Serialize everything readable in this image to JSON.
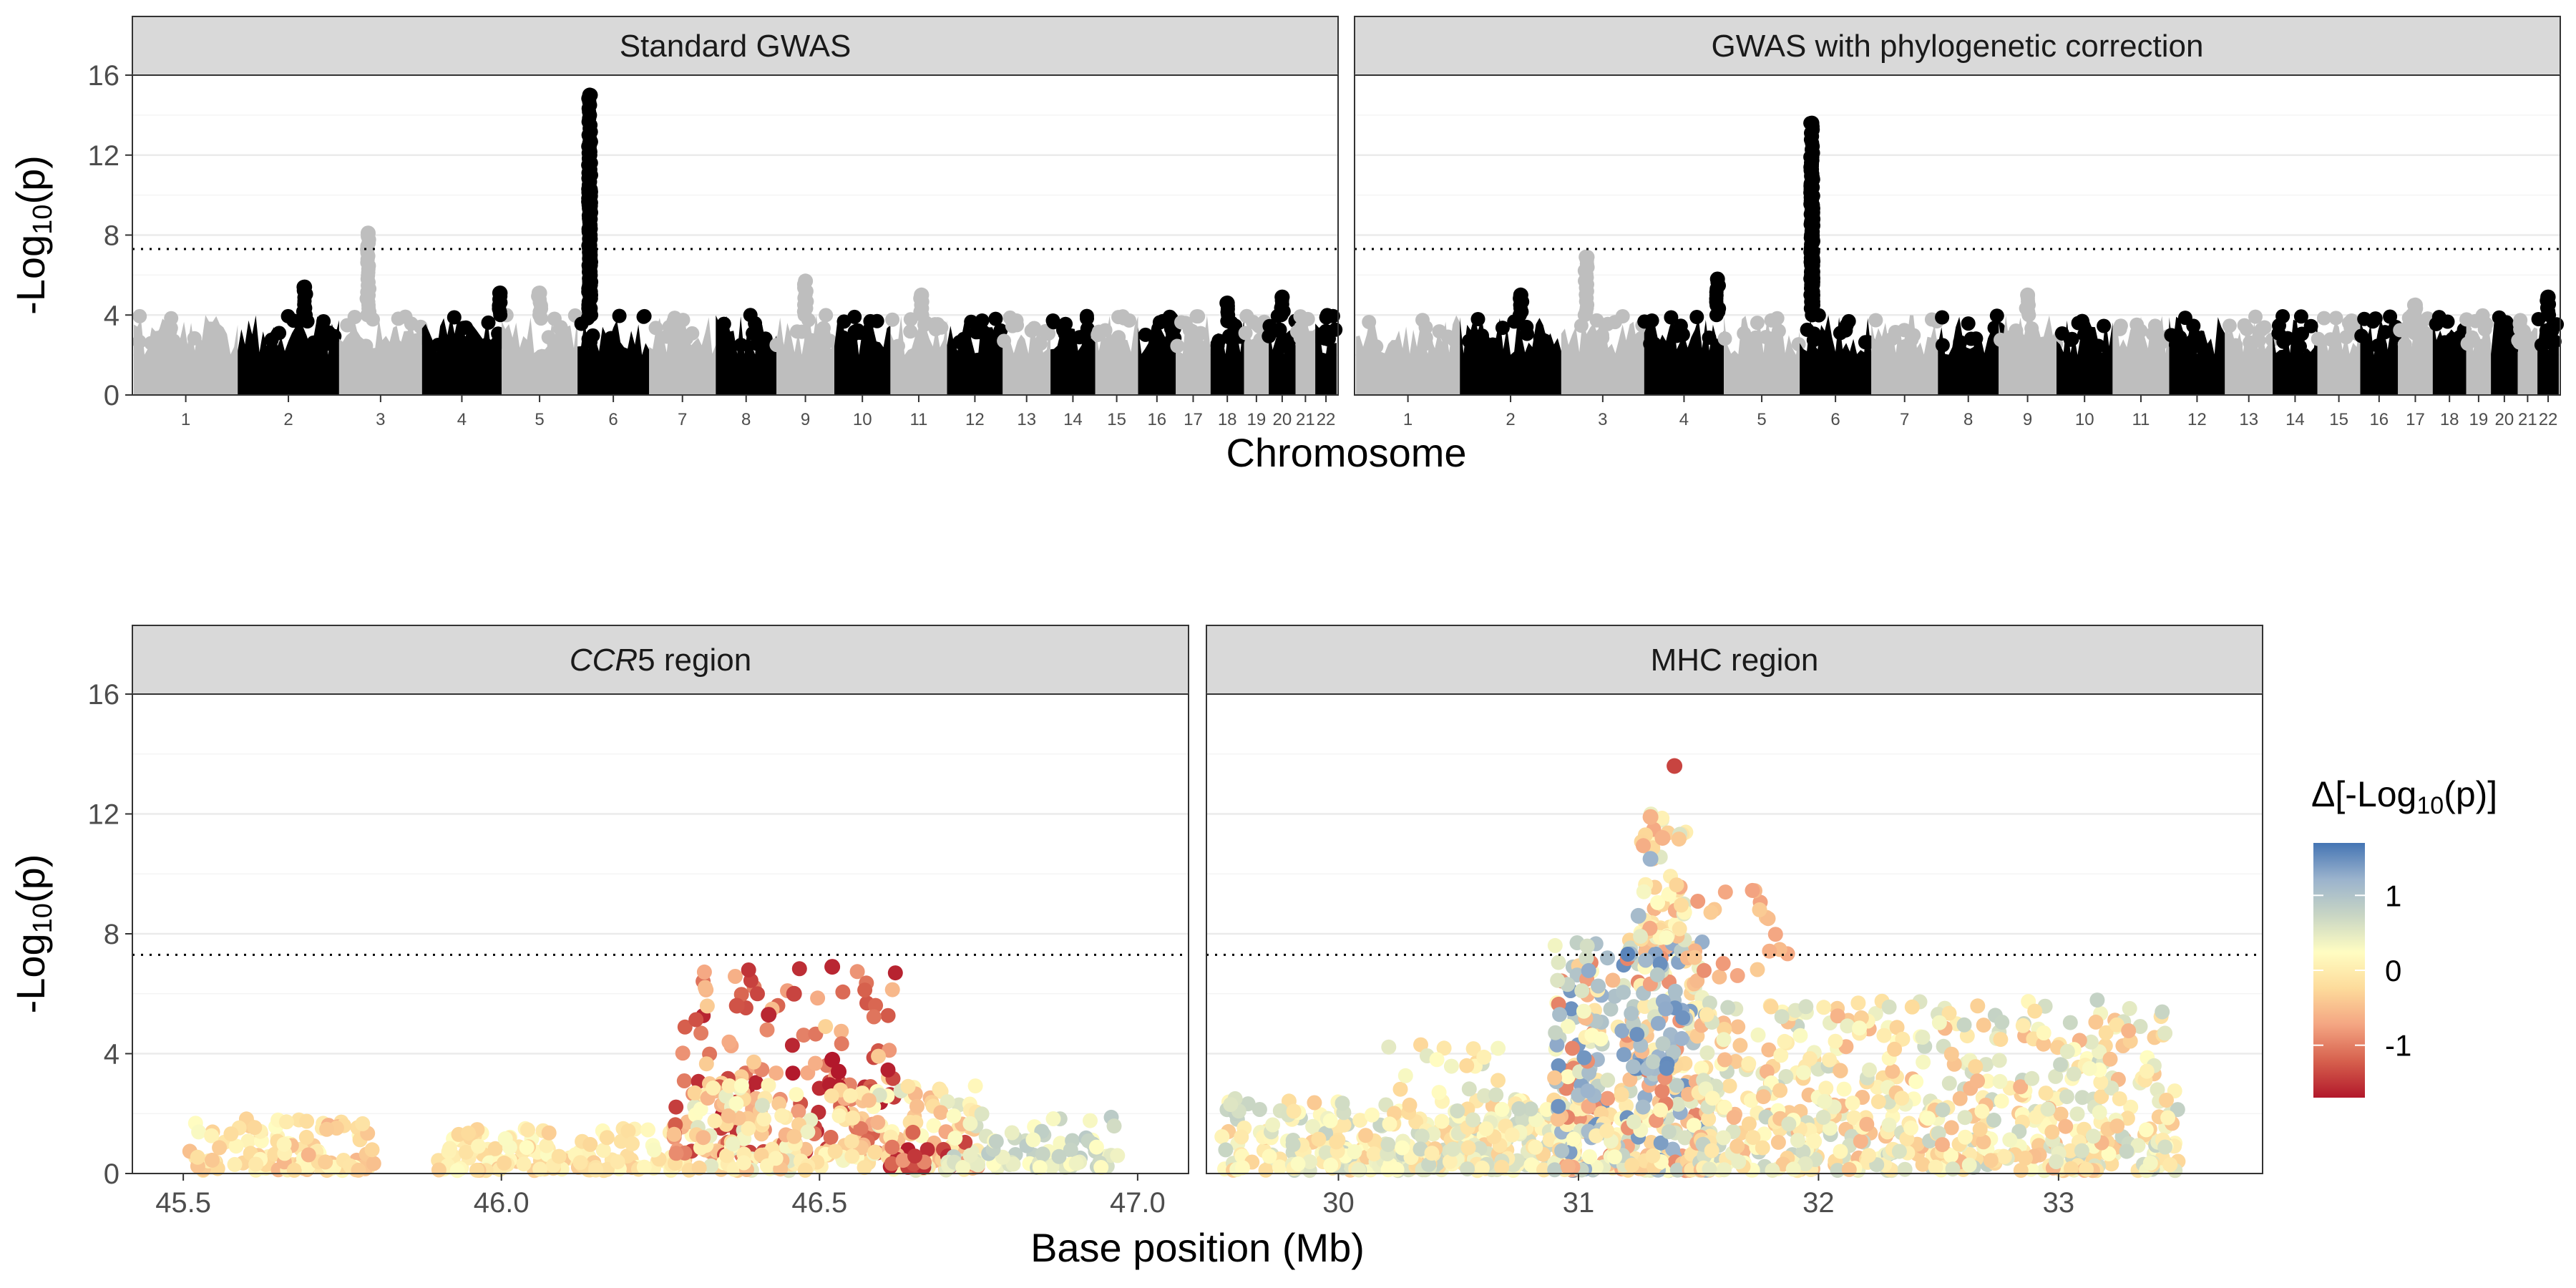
{
  "chart_data": [
    {
      "type": "scatter",
      "subtype": "manhattan",
      "panels": [
        {
          "title": "Standard GWAS",
          "peaks": [
            {
              "chrom": 2,
              "pos": 0.66,
              "y": 5.4
            },
            {
              "chrom": 3,
              "pos": 0.35,
              "y": 8.1
            },
            {
              "chrom": 4,
              "pos": 0.98,
              "y": 5.1
            },
            {
              "chrom": 5,
              "pos": 0.5,
              "y": 5.1
            },
            {
              "chrom": 6,
              "pos": 0.17,
              "y": 15.0
            },
            {
              "chrom": 6,
              "pos": 0.17,
              "y": 12.6
            },
            {
              "chrom": 6,
              "pos": 0.17,
              "y": 10.3
            },
            {
              "chrom": 9,
              "pos": 0.5,
              "y": 5.7
            },
            {
              "chrom": 11,
              "pos": 0.55,
              "y": 5.0
            },
            {
              "chrom": 18,
              "pos": 0.5,
              "y": 4.6
            },
            {
              "chrom": 20,
              "pos": 0.5,
              "y": 4.9
            }
          ]
        },
        {
          "title": "GWAS with phylogenetic correction",
          "peaks": [
            {
              "chrom": 2,
              "pos": 0.6,
              "y": 5.0
            },
            {
              "chrom": 3,
              "pos": 0.3,
              "y": 6.9
            },
            {
              "chrom": 4,
              "pos": 0.92,
              "y": 5.8
            },
            {
              "chrom": 6,
              "pos": 0.17,
              "y": 13.6
            },
            {
              "chrom": 6,
              "pos": 0.17,
              "y": 11.9
            },
            {
              "chrom": 6,
              "pos": 0.17,
              "y": 9.5
            },
            {
              "chrom": 9,
              "pos": 0.5,
              "y": 5.0
            },
            {
              "chrom": 17,
              "pos": 0.5,
              "y": 4.5
            },
            {
              "chrom": 22,
              "pos": 0.5,
              "y": 4.9
            }
          ]
        }
      ],
      "chromosomes": [
        "1",
        "2",
        "3",
        "4",
        "5",
        "6",
        "7",
        "8",
        "9",
        "10",
        "11",
        "12",
        "13",
        "14",
        "15",
        "16",
        "17",
        "18",
        "19",
        "20",
        "21",
        "22"
      ],
      "chromosome_sizes": [
        248,
        242,
        198,
        190,
        181,
        171,
        159,
        145,
        138,
        134,
        135,
        133,
        114,
        107,
        102,
        90,
        83,
        80,
        59,
        64,
        47,
        51
      ],
      "colors": [
        "#bebebe",
        "#000000"
      ],
      "baseline_max": 4.0,
      "threshold": 7.3,
      "xlabel": "Chromosome",
      "ylabel": "-Log10(p)",
      "ylim": [
        0,
        16
      ],
      "yticks": [
        0,
        4,
        8,
        12,
        16
      ],
      "grid": true
    },
    {
      "type": "scatter",
      "panels": [
        {
          "title_italic": "CCR",
          "title_rest": "5 region",
          "xlim": [
            45.42,
            47.08
          ],
          "xticks": [
            45.5,
            46.0,
            46.5,
            47.0
          ],
          "tick_labels": [
            "45.5",
            "46.0",
            "46.5",
            "47.0"
          ],
          "clusters": [
            {
              "x": [
                45.5,
                45.8
              ],
              "y": [
                0.1,
                1.9
              ],
              "color_values": [
                -0.6,
                0.3
              ],
              "count": 110
            },
            {
              "x": [
                45.9,
                46.3
              ],
              "y": [
                0.1,
                1.5
              ],
              "color_values": [
                -0.4,
                0.3
              ],
              "count": 130
            },
            {
              "x": [
                46.27,
                46.62
              ],
              "y": [
                0.6,
                6.9
              ],
              "color_values": [
                -1.7,
                -0.3
              ],
              "count": 170
            },
            {
              "x": [
                46.3,
                46.75
              ],
              "y": [
                0.1,
                3.0
              ],
              "color_values": [
                -0.6,
                0.6
              ],
              "count": 200
            },
            {
              "x": [
                46.6,
                46.75
              ],
              "y": [
                0.2,
                1.5
              ],
              "color_values": [
                -1.7,
                -0.5
              ],
              "count": 25
            },
            {
              "x": [
                46.7,
                46.98
              ],
              "y": [
                0.2,
                2.0
              ],
              "color_values": [
                0.2,
                0.9
              ],
              "count": 80
            }
          ],
          "highlight_points": [
            {
              "x": 46.52,
              "y": 6.9,
              "c": -1.6
            },
            {
              "x": 46.53,
              "y": 3.4,
              "c": -1.8
            },
            {
              "x": 46.52,
              "y": 3.8,
              "c": -1.7
            },
            {
              "x": 46.42,
              "y": 5.3,
              "c": -1.6
            },
            {
              "x": 46.46,
              "y": 6.0,
              "c": -1.4
            },
            {
              "x": 46.37,
              "y": 5.6,
              "c": -1.3
            }
          ]
        },
        {
          "title": "MHC region",
          "xlim": [
            29.45,
            33.85
          ],
          "xticks": [
            30,
            31,
            32,
            33
          ],
          "tick_labels": [
            "30",
            "31",
            "32",
            "33"
          ],
          "clusters": [
            {
              "x": [
                29.5,
                31.0
              ],
              "y": [
                0.1,
                2.5
              ],
              "color_values": [
                -0.4,
                0.8
              ],
              "count": 320
            },
            {
              "x": [
                30.2,
                31.0
              ],
              "y": [
                0.1,
                4.3
              ],
              "color_values": [
                -0.3,
                0.8
              ],
              "count": 80
            },
            {
              "x": [
                30.9,
                31.55
              ],
              "y": [
                0.1,
                7.8
              ],
              "color_values": [
                -1.0,
                1.5
              ],
              "count": 420
            },
            {
              "x": [
                31.2,
                31.45
              ],
              "y": [
                3.5,
                7.9
              ],
              "color_values": [
                0.8,
                1.6
              ],
              "count": 40
            },
            {
              "x": [
                31.25,
                31.45
              ],
              "y": [
                7.8,
                12.0
              ],
              "color_values": [
                -0.7,
                0.6
              ],
              "count": 60
            },
            {
              "x": [
                31.45,
                31.9
              ],
              "y": [
                6.5,
                9.8
              ],
              "color_values": [
                -0.8,
                -0.3
              ],
              "count": 20
            },
            {
              "x": [
                31.5,
                33.5
              ],
              "y": [
                0.1,
                5.8
              ],
              "color_values": [
                -0.6,
                0.8
              ],
              "count": 600
            }
          ],
          "highlight_points": [
            {
              "x": 31.4,
              "y": 13.6,
              "c": -1.4
            },
            {
              "x": 31.3,
              "y": 11.9,
              "c": -0.6
            },
            {
              "x": 31.35,
              "y": 11.2,
              "c": -0.6
            },
            {
              "x": 31.3,
              "y": 10.5,
              "c": 1.2
            },
            {
              "x": 31.25,
              "y": 8.6,
              "c": 1.1
            }
          ]
        }
      ],
      "xlabel": "Base position (Mb)",
      "ylabel": "-Log10(p)",
      "ylim": [
        0,
        16
      ],
      "yticks": [
        0,
        4,
        8,
        12,
        16
      ],
      "threshold": 7.3,
      "color_scale": {
        "title": "Δ[-Log10(p)]",
        "range": [
          -1.7,
          1.7
        ],
        "ticks": [
          1,
          0,
          -1
        ],
        "tick_labels": [
          "1",
          "0",
          "-1"
        ],
        "stops": [
          "#b2182b",
          "#d6604d",
          "#f4a582",
          "#fddb9b",
          "#fffdc2",
          "#c9d6c4",
          "#9bb3cd",
          "#4575b4"
        ]
      },
      "grid": true
    }
  ]
}
